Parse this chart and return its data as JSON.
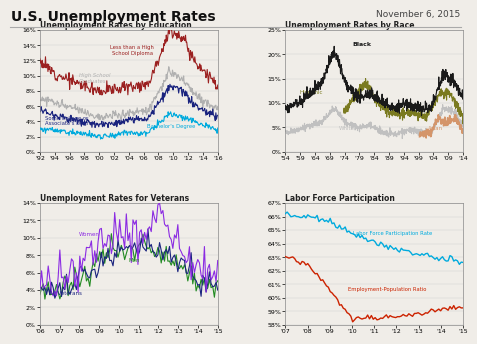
{
  "title": "U.S. Unemployment Rates",
  "date": "November 6, 2015",
  "background_color": "#f0ede8",
  "panel_bg": "#f0ede8",
  "edu_title": "Unemployment Rates by Education",
  "edu_ylim": [
    0,
    16
  ],
  "edu_ytick_vals": [
    0,
    2,
    4,
    6,
    8,
    10,
    12,
    14,
    16
  ],
  "edu_ytick_labels": [
    "0%",
    "2%",
    "4%",
    "6%",
    "8%",
    "10%",
    "12%",
    "14%",
    "16%"
  ],
  "edu_xticks": [
    "'92",
    "'94",
    "'96",
    "'98",
    "'00",
    "'02",
    "'04",
    "'06",
    "'08",
    "'10",
    "'12",
    "'14",
    "'16"
  ],
  "race_title": "Unemployment Rates by Race",
  "race_ylim": [
    0,
    25
  ],
  "race_ytick_vals": [
    0,
    5,
    10,
    15,
    20,
    25
  ],
  "race_ytick_labels": [
    "0%",
    "5%",
    "10%",
    "15%",
    "20%",
    "25%"
  ],
  "race_xticks": [
    "'54",
    "'59",
    "'64",
    "'69",
    "'74",
    "'79",
    "'84",
    "'89",
    "'94",
    "'99",
    "'04",
    "'09",
    "'14"
  ],
  "vet_title": "Unemployment Rates for Veterans",
  "vet_ylim": [
    0,
    14
  ],
  "vet_ytick_vals": [
    0,
    2,
    4,
    6,
    8,
    10,
    12,
    14
  ],
  "vet_ytick_labels": [
    "0%",
    "2%",
    "4%",
    "6%",
    "8%",
    "10%",
    "12%",
    "14%"
  ],
  "vet_xticks": [
    "'06",
    "'07",
    "'08",
    "'09",
    "'10",
    "'11",
    "'12",
    "'13",
    "'14",
    "'15"
  ],
  "lfp_title": "Labor Force Participation",
  "lfp_ylim": [
    58,
    67
  ],
  "lfp_ytick_vals": [
    58,
    59,
    60,
    61,
    62,
    63,
    64,
    65,
    66,
    67
  ],
  "lfp_ytick_labels": [
    "58%",
    "59%",
    "60%",
    "61%",
    "62%",
    "63%",
    "64%",
    "65%",
    "66%",
    "67%"
  ],
  "lfp_xticks": [
    "'07",
    "'08",
    "'09",
    "'10",
    "'11",
    "'12",
    "'13",
    "'14",
    "'15"
  ],
  "colors": {
    "less_than_hs": "#9b2020",
    "hs_graduates": "#b0b0b0",
    "some_college": "#1a237e",
    "bachelors": "#00aadd",
    "black": "#1a1a1a",
    "hispanic": "#7a7a20",
    "white": "#c0c0c0",
    "asian": "#d4956a",
    "women": "#8b2be2",
    "men": "#228b22",
    "all_vets": "#1a237e",
    "lfp_rate": "#00aadd",
    "emp_pop": "#cc2200"
  }
}
